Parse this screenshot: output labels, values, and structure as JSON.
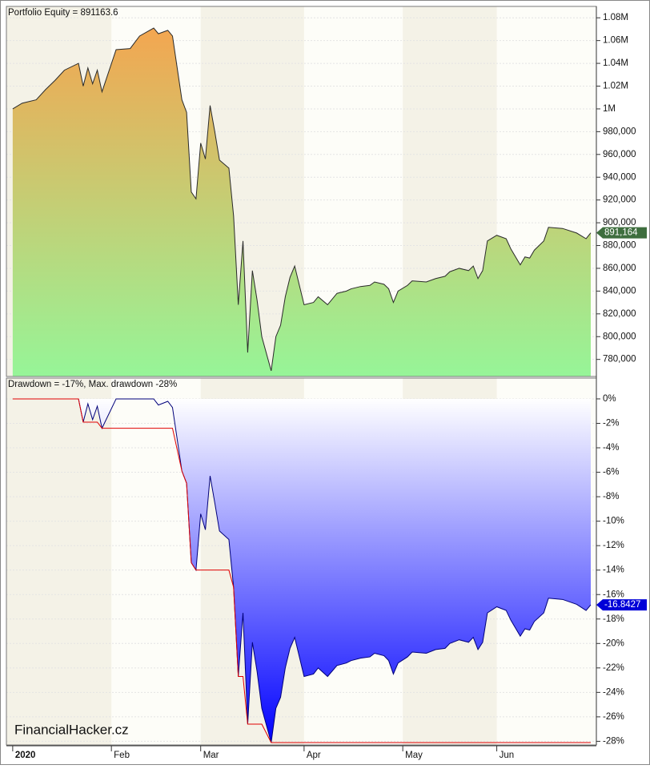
{
  "chart_data": [
    {
      "type": "area",
      "title": "Portfolio Equity = 891163.6",
      "x": [
        0,
        2,
        5,
        7,
        9,
        11,
        14,
        15,
        16,
        17,
        18,
        19,
        22,
        25,
        27,
        30,
        31,
        33,
        34,
        36,
        37,
        38,
        39,
        40,
        41,
        42,
        43,
        44,
        46,
        47,
        48,
        49,
        50,
        51,
        52,
        53,
        55,
        56,
        57,
        58,
        59,
        60,
        62,
        64,
        65,
        67,
        69,
        71,
        72,
        74,
        76,
        77,
        79,
        80,
        81,
        82,
        84,
        85,
        88,
        90,
        92,
        93,
        95,
        97,
        98,
        99,
        100,
        101,
        103,
        105,
        106,
        108,
        109,
        110,
        111,
        113,
        114,
        117,
        120,
        122,
        123
      ],
      "series": [
        {
          "color": "#2a2a2a",
          "fill": [
            "#f9a14c",
            "#96f598"
          ],
          "values": [
            1000000,
            1005000,
            1008000,
            1017000,
            1025000,
            1034000,
            1040000,
            1020000,
            1036000,
            1022000,
            1034000,
            1015000,
            1052000,
            1053000,
            1064000,
            1071000,
            1066000,
            1069000,
            1064000,
            1008000,
            997000,
            927000,
            921000,
            970000,
            956000,
            1003000,
            980000,
            955000,
            948000,
            906000,
            828000,
            884000,
            786000,
            858000,
            832000,
            800000,
            770000,
            800000,
            810000,
            835000,
            852000,
            862000,
            828000,
            830000,
            835000,
            828000,
            838000,
            840000,
            842000,
            844000,
            845000,
            848000,
            846000,
            842000,
            830000,
            840000,
            845000,
            849000,
            848000,
            851000,
            853000,
            857000,
            860000,
            858000,
            862000,
            851000,
            858000,
            884000,
            889000,
            886000,
            877000,
            863000,
            870000,
            869000,
            876000,
            884000,
            896000,
            895000,
            891000,
            886000,
            891163.6
          ]
        }
      ],
      "last_value": {
        "value": 891163.6,
        "label": "891,164",
        "color": "#3e6e3e"
      },
      "xlim": [
        -1,
        123
      ],
      "ylim": [
        765000,
        1090000
      ],
      "yticks": [
        {
          "value": 780000,
          "label": "780,000"
        },
        {
          "value": 800000,
          "label": "800,000"
        },
        {
          "value": 820000,
          "label": "820,000"
        },
        {
          "value": 840000,
          "label": "840,000"
        },
        {
          "value": 860000,
          "label": "860,000"
        },
        {
          "value": 880000,
          "label": "880,000"
        },
        {
          "value": 900000,
          "label": "900,000"
        },
        {
          "value": 920000,
          "label": "920,000"
        },
        {
          "value": 940000,
          "label": "940,000"
        },
        {
          "value": 960000,
          "label": "960,000"
        },
        {
          "value": 980000,
          "label": "980,000"
        },
        {
          "value": 1000000,
          "label": "1M"
        },
        {
          "value": 1020000,
          "label": "1.02M"
        },
        {
          "value": 1040000,
          "label": "1.04M"
        },
        {
          "value": 1060000,
          "label": "1.06M"
        },
        {
          "value": 1080000,
          "label": "1.08M"
        }
      ],
      "grid": true
    },
    {
      "type": "area",
      "title": "Drawdown = -17%, Max. drawdown -28%",
      "x": [
        0,
        2,
        5,
        7,
        9,
        11,
        14,
        15,
        16,
        17,
        18,
        19,
        22,
        25,
        27,
        30,
        31,
        33,
        34,
        36,
        37,
        38,
        39,
        40,
        41,
        42,
        43,
        44,
        46,
        47,
        48,
        49,
        50,
        51,
        52,
        53,
        55,
        56,
        57,
        58,
        59,
        60,
        62,
        64,
        65,
        67,
        69,
        71,
        72,
        74,
        76,
        77,
        79,
        80,
        81,
        82,
        84,
        85,
        88,
        90,
        92,
        93,
        95,
        97,
        98,
        99,
        100,
        101,
        103,
        105,
        106,
        108,
        109,
        110,
        111,
        113,
        114,
        117,
        120,
        122,
        123
      ],
      "series": [
        {
          "color": "#00007a",
          "fill": [
            "#ffffff",
            "#0000ff"
          ],
          "values": [
            0,
            0,
            0,
            0,
            0,
            0,
            0,
            -1.9,
            -0.4,
            -1.7,
            -0.6,
            -2.4,
            0,
            0,
            0,
            0,
            -0.5,
            -0.2,
            -0.7,
            -5.9,
            -6.9,
            -13.4,
            -14.0,
            -9.4,
            -10.7,
            -6.3,
            -8.5,
            -10.8,
            -11.5,
            -15.4,
            -22.7,
            -17.5,
            -26.6,
            -19.9,
            -22.3,
            -25.3,
            -28.1,
            -25.3,
            -24.4,
            -22.0,
            -20.4,
            -19.5,
            -22.7,
            -22.5,
            -22.0,
            -22.7,
            -21.8,
            -21.6,
            -21.4,
            -21.2,
            -21.1,
            -20.8,
            -21.0,
            -21.4,
            -22.5,
            -21.6,
            -21.1,
            -20.7,
            -20.8,
            -20.5,
            -20.4,
            -20.0,
            -19.7,
            -19.9,
            -19.5,
            -20.5,
            -19.9,
            -17.5,
            -17.0,
            -17.3,
            -18.1,
            -19.4,
            -18.8,
            -18.9,
            -18.2,
            -17.5,
            -16.3,
            -16.4,
            -16.8,
            -17.3,
            -16.8427
          ]
        },
        {
          "color": "#e00000",
          "values": [
            0,
            0,
            0,
            0,
            0,
            0,
            0,
            -1.9,
            -1.9,
            -1.9,
            -1.9,
            -2.4,
            -2.4,
            -2.4,
            -2.4,
            -2.4,
            -2.4,
            -2.4,
            -2.4,
            -5.9,
            -6.9,
            -13.4,
            -14.0,
            -14.0,
            -14.0,
            -14.0,
            -14.0,
            -14.0,
            -14.0,
            -15.4,
            -22.7,
            -22.7,
            -26.6,
            -26.6,
            -26.6,
            -26.6,
            -28.1,
            -28.1,
            -28.1,
            -28.1,
            -28.1,
            -28.1,
            -28.1,
            -28.1,
            -28.1,
            -28.1,
            -28.1,
            -28.1,
            -28.1,
            -28.1,
            -28.1,
            -28.1,
            -28.1,
            -28.1,
            -28.1,
            -28.1,
            -28.1,
            -28.1,
            -28.1,
            -28.1,
            -28.1,
            -28.1,
            -28.1,
            -28.1,
            -28.1,
            -28.1,
            -28.1,
            -28.1,
            -28.1,
            -28.1,
            -28.1,
            -28.1,
            -28.1,
            -28.1,
            -28.1,
            -28.1,
            -28.1,
            -28.1,
            -28.1,
            -28.1,
            -28.1
          ]
        }
      ],
      "last_value": {
        "value": -16.8427,
        "label": "-16.8427",
        "color": "#0000d8"
      },
      "annotation": "FinancialHacker.cz",
      "xlim": [
        -1,
        123
      ],
      "ylim": [
        -28.3,
        1.7
      ],
      "yticks": [
        {
          "value": 0,
          "label": "0%"
        },
        {
          "value": -2,
          "label": "-2%"
        },
        {
          "value": -4,
          "label": "-4%"
        },
        {
          "value": -6,
          "label": "-6%"
        },
        {
          "value": -8,
          "label": "-8%"
        },
        {
          "value": -10,
          "label": "-10%"
        },
        {
          "value": -12,
          "label": "-12%"
        },
        {
          "value": -14,
          "label": "-14%"
        },
        {
          "value": -16,
          "label": "-16%"
        },
        {
          "value": -18,
          "label": "-18%"
        },
        {
          "value": -20,
          "label": "-20%"
        },
        {
          "value": -22,
          "label": "-22%"
        },
        {
          "value": -24,
          "label": "-24%"
        },
        {
          "value": -26,
          "label": "-26%"
        },
        {
          "value": -28,
          "label": "-28%"
        }
      ],
      "xticks": [
        {
          "value": 0,
          "label": "2020"
        },
        {
          "value": 21,
          "label": "Feb"
        },
        {
          "value": 40,
          "label": "Mar"
        },
        {
          "value": 62,
          "label": "Apr"
        },
        {
          "value": 83,
          "label": "May"
        },
        {
          "value": 103,
          "label": "Jun"
        }
      ],
      "grid": true
    }
  ]
}
